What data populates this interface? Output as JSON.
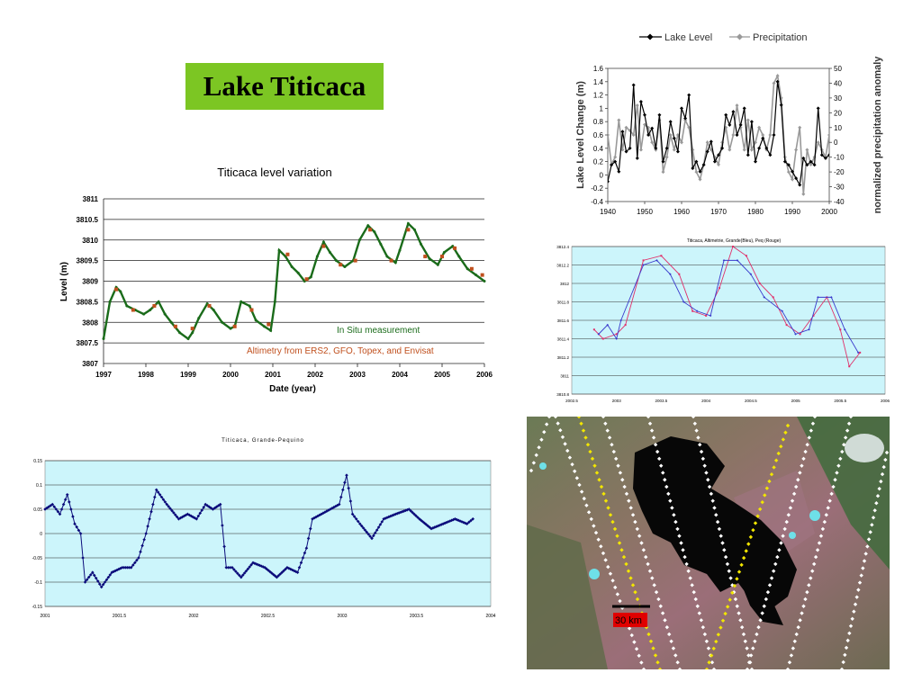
{
  "slide_title": "Lake Titicaca",
  "colors": {
    "title_bg": "#7cc623",
    "insitu": "#1a6b1a",
    "altimetry": "#c0501e",
    "lake_level": "#000000",
    "precip": "#999999",
    "blue_series": "#3a3acc",
    "red_series": "#e0306a",
    "grande_series": "#0b0b7a",
    "plot_bg": "#ccf5fb",
    "sat_scale_bg": "#e00000"
  },
  "chart_data": [
    {
      "type": "line",
      "title": "Titicaca level variation",
      "xlabel": "Date (year)",
      "ylabel": "Level (m)",
      "xlim": [
        1997,
        2006
      ],
      "ylim": [
        3807,
        3811
      ],
      "x_ticks": [
        "1997",
        "1998",
        "1999",
        "2000",
        "2001",
        "2002",
        "2003",
        "2004",
        "2005",
        "2006"
      ],
      "y_ticks": [
        "3807",
        "3807.5",
        "3808",
        "3808.5",
        "3809",
        "3809.5",
        "3810",
        "3810.5",
        "3811"
      ],
      "grid": "horizontal",
      "annotations": [
        "In Situ measurement",
        "Altimetry from ERS2, GFO, Topex, and Envisat"
      ],
      "series": [
        {
          "name": "In Situ measurement",
          "x": [
            1997.0,
            1997.15,
            1997.3,
            1997.4,
            1997.55,
            1997.75,
            1997.95,
            1998.1,
            1998.3,
            1998.45,
            1998.6,
            1998.8,
            1999.0,
            1999.1,
            1999.25,
            1999.45,
            1999.6,
            1999.8,
            2000.0,
            2000.1,
            2000.25,
            2000.45,
            2000.6,
            2000.8,
            2000.95,
            2001.05,
            2001.15,
            2001.3,
            2001.45,
            2001.6,
            2001.75,
            2001.9,
            2002.05,
            2002.2,
            2002.35,
            2002.5,
            2002.7,
            2002.9,
            2003.05,
            2003.25,
            2003.4,
            2003.55,
            2003.7,
            2003.9,
            2004.0,
            2004.2,
            2004.35,
            2004.5,
            2004.7,
            2004.9,
            2005.05,
            2005.25,
            2005.4,
            2005.6,
            2005.8,
            2006.0
          ],
          "y": [
            3807.6,
            3808.5,
            3808.85,
            3808.75,
            3808.4,
            3808.3,
            3808.2,
            3808.3,
            3808.5,
            3808.2,
            3808.0,
            3807.75,
            3807.6,
            3807.75,
            3808.1,
            3808.45,
            3808.3,
            3808.0,
            3807.85,
            3807.9,
            3808.5,
            3808.4,
            3808.05,
            3807.9,
            3807.8,
            3808.5,
            3809.75,
            3809.6,
            3809.35,
            3809.2,
            3809.0,
            3809.1,
            3809.6,
            3809.95,
            3809.7,
            3809.5,
            3809.35,
            3809.5,
            3810.0,
            3810.35,
            3810.2,
            3809.9,
            3809.6,
            3809.45,
            3809.75,
            3810.4,
            3810.25,
            3809.9,
            3809.55,
            3809.4,
            3809.7,
            3809.85,
            3809.6,
            3809.3,
            3809.15,
            3809.0
          ]
        },
        {
          "name": "Altimetry from ERS2, GFO, Topex, and Envisat",
          "x": [
            1997.3,
            1997.7,
            1998.2,
            1998.7,
            1999.1,
            1999.5,
            2000.1,
            2000.5,
            2000.9,
            2001.35,
            2001.8,
            2002.2,
            2002.6,
            2002.95,
            2003.3,
            2003.8,
            2004.2,
            2004.6,
            2005.0,
            2005.3,
            2005.7,
            2005.95
          ],
          "y": [
            3808.8,
            3808.3,
            3808.4,
            3807.9,
            3807.85,
            3808.4,
            3807.9,
            3808.3,
            3807.95,
            3809.65,
            3809.05,
            3809.85,
            3809.4,
            3809.5,
            3810.25,
            3809.5,
            3810.25,
            3809.6,
            3809.6,
            3809.8,
            3809.3,
            3809.15
          ]
        }
      ]
    },
    {
      "type": "line",
      "legend": [
        "Lake Level",
        "Precipitation"
      ],
      "legend_position": "top",
      "ylabel": "Lake Level Change (m)",
      "y2label": "normalized precipitation anomaly",
      "xlim": [
        1940,
        2000
      ],
      "ylim": [
        -0.4,
        1.6
      ],
      "y2lim": [
        -40,
        50
      ],
      "x_ticks": [
        "1940",
        "1950",
        "1960",
        "1970",
        "1980",
        "1990",
        "2000"
      ],
      "y_ticks": [
        "-0.4",
        "-0.2",
        "0",
        "0.2",
        "0.4",
        "0.6",
        "0.8",
        "1",
        "1.2",
        "1.4",
        "1.6"
      ],
      "y2_ticks": [
        "-40",
        "-30",
        "-20",
        "-10",
        "0",
        "10",
        "20",
        "30",
        "40",
        "50"
      ],
      "series": [
        {
          "name": "Lake Level",
          "x": [
            1940,
            1941,
            1942,
            1943,
            1944,
            1945,
            1946,
            1947,
            1948,
            1949,
            1950,
            1951,
            1952,
            1953,
            1954,
            1955,
            1956,
            1957,
            1958,
            1959,
            1960,
            1961,
            1962,
            1963,
            1964,
            1965,
            1966,
            1967,
            1968,
            1969,
            1970,
            1971,
            1972,
            1973,
            1974,
            1975,
            1976,
            1977,
            1978,
            1979,
            1980,
            1981,
            1982,
            1983,
            1984,
            1985,
            1986,
            1987,
            1988,
            1989,
            1990,
            1991,
            1992,
            1993,
            1994,
            1995,
            1996,
            1997,
            1998,
            1999,
            2000
          ],
          "y": [
            -0.1,
            0.15,
            0.2,
            0.05,
            0.65,
            0.35,
            0.4,
            1.35,
            0.25,
            1.1,
            0.9,
            0.6,
            0.7,
            0.4,
            0.9,
            0.2,
            0.4,
            0.8,
            0.55,
            0.35,
            1.0,
            0.85,
            1.2,
            0.1,
            0.2,
            0.05,
            0.15,
            0.35,
            0.5,
            0.2,
            0.3,
            0.4,
            0.9,
            0.75,
            0.95,
            0.6,
            0.75,
            1.0,
            0.3,
            0.8,
            0.2,
            0.4,
            0.55,
            0.4,
            0.3,
            0.6,
            1.4,
            1.05,
            0.2,
            0.15,
            0.05,
            -0.05,
            -0.15,
            0.25,
            0.15,
            0.2,
            0.15,
            1.0,
            0.3,
            0.25,
            0.3
          ]
        },
        {
          "name": "Precipitation",
          "x": [
            1940,
            1941,
            1942,
            1943,
            1944,
            1945,
            1946,
            1947,
            1948,
            1949,
            1950,
            1951,
            1952,
            1953,
            1954,
            1955,
            1956,
            1957,
            1958,
            1959,
            1960,
            1961,
            1962,
            1963,
            1964,
            1965,
            1966,
            1967,
            1968,
            1969,
            1970,
            1971,
            1972,
            1973,
            1974,
            1975,
            1976,
            1977,
            1978,
            1979,
            1980,
            1981,
            1982,
            1983,
            1984,
            1985,
            1986,
            1987,
            1988,
            1989,
            1990,
            1991,
            1992,
            1993,
            1994,
            1995,
            1996,
            1997,
            1998,
            1999,
            2000
          ],
          "y": [
            5,
            -15,
            -10,
            15,
            -5,
            10,
            8,
            5,
            25,
            -5,
            12,
            10,
            0,
            -5,
            15,
            -20,
            -10,
            5,
            -5,
            5,
            0,
            15,
            10,
            -5,
            -20,
            -25,
            -15,
            0,
            -5,
            -10,
            -15,
            0,
            10,
            -5,
            5,
            25,
            10,
            -5,
            15,
            -5,
            0,
            10,
            5,
            -5,
            5,
            40,
            45,
            30,
            -10,
            -20,
            -25,
            -5,
            10,
            -35,
            -5,
            -15,
            -10,
            0,
            -5,
            -10,
            5
          ]
        }
      ]
    },
    {
      "type": "line",
      "title": "Titicaca, Altimetrie, Grande(Bleu), Peq (Rouge)",
      "xlim": [
        2002.5,
        2006
      ],
      "ylim": [
        3810.8,
        3812.4
      ],
      "x_ticks": [
        "2002.5",
        "2003",
        "2003.5",
        "2004",
        "2004.5",
        "2005",
        "2005.5",
        "2006"
      ],
      "y_ticks": [
        "3810.8",
        "3811",
        "3811.2",
        "3811.4",
        "3811.6",
        "3811.8",
        "3812",
        "3812.2",
        "3812.4"
      ],
      "series": [
        {
          "name": "Grande",
          "x": [
            2002.8,
            2002.9,
            2003.0,
            2003.05,
            2003.3,
            2003.45,
            2003.6,
            2003.75,
            2003.9,
            2004.05,
            2004.2,
            2004.35,
            2004.5,
            2004.65,
            2004.85,
            2005.0,
            2005.15,
            2005.25,
            2005.4,
            2005.55,
            2005.7
          ],
          "y": [
            3811.45,
            3811.55,
            3811.4,
            3811.6,
            3812.2,
            3812.25,
            3812.1,
            3811.8,
            3811.7,
            3811.65,
            3812.25,
            3812.25,
            3812.1,
            3811.85,
            3811.7,
            3811.45,
            3811.5,
            3811.85,
            3811.85,
            3811.5,
            3811.25
          ]
        },
        {
          "name": "Peq",
          "x": [
            2002.75,
            2002.85,
            2003.0,
            2003.1,
            2003.3,
            2003.5,
            2003.7,
            2003.85,
            2004.0,
            2004.15,
            2004.3,
            2004.45,
            2004.6,
            2004.75,
            2004.9,
            2005.05,
            2005.2,
            2005.35,
            2005.5,
            2005.6,
            2005.72
          ],
          "y": [
            3811.5,
            3811.4,
            3811.45,
            3811.55,
            3812.25,
            3812.3,
            3812.1,
            3811.7,
            3811.65,
            3811.95,
            3812.4,
            3812.3,
            3812.0,
            3811.85,
            3811.55,
            3811.45,
            3811.65,
            3811.85,
            3811.5,
            3811.1,
            3811.25
          ]
        }
      ]
    },
    {
      "type": "line",
      "title": "Titicaca, Grande-Pequino",
      "xlim": [
        2001,
        2004
      ],
      "ylim": [
        -0.15,
        0.15
      ],
      "x_ticks": [
        "2001",
        "2001.5",
        "2002",
        "2002.5",
        "2003",
        "2003.5",
        "2004"
      ],
      "y_ticks": [
        "-0.15",
        "-0.1",
        "-0.05",
        "0",
        "0.05",
        "0.1",
        "0.15"
      ],
      "series": [
        {
          "name": "Grande-Pequino",
          "x": [
            2001.0,
            2001.05,
            2001.1,
            2001.15,
            2001.2,
            2001.24,
            2001.27,
            2001.32,
            2001.38,
            2001.45,
            2001.52,
            2001.58,
            2001.63,
            2001.68,
            2001.75,
            2001.82,
            2001.9,
            2001.96,
            2002.02,
            2002.08,
            2002.13,
            2002.18,
            2002.22,
            2002.26,
            2002.32,
            2002.4,
            2002.48,
            2002.56,
            2002.63,
            2002.7,
            2002.76,
            2002.8,
            2002.86,
            2002.92,
            2002.98,
            2003.03,
            2003.07,
            2003.12,
            2003.2,
            2003.28,
            2003.36,
            2003.45,
            2003.52,
            2003.6,
            2003.68,
            2003.76,
            2003.84,
            2003.88
          ],
          "y": [
            0.05,
            0.06,
            0.04,
            0.08,
            0.02,
            0.0,
            -0.1,
            -0.08,
            -0.11,
            -0.08,
            -0.07,
            -0.07,
            -0.05,
            0.0,
            0.09,
            0.06,
            0.03,
            0.04,
            0.03,
            0.06,
            0.05,
            0.06,
            -0.07,
            -0.07,
            -0.09,
            -0.06,
            -0.07,
            -0.09,
            -0.07,
            -0.08,
            -0.03,
            0.03,
            0.04,
            0.05,
            0.06,
            0.12,
            0.04,
            0.02,
            -0.01,
            0.03,
            0.04,
            0.05,
            0.03,
            0.01,
            0.02,
            0.03,
            0.02,
            0.03
          ]
        }
      ]
    }
  ],
  "satellite": {
    "scale_label": "30 km"
  }
}
